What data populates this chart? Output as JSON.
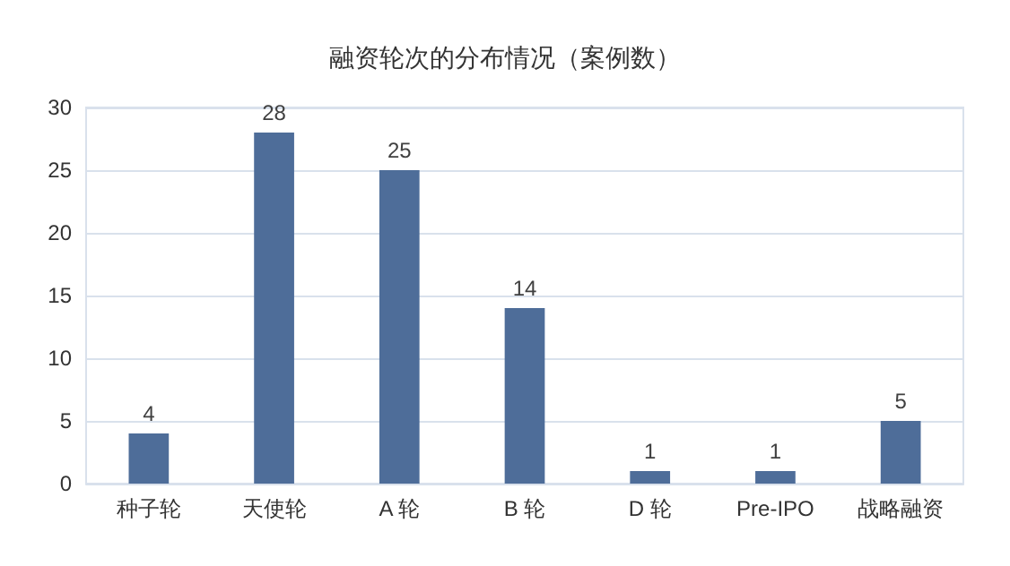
{
  "chart_data": {
    "type": "bar",
    "title": "融资轮次的分布情况（案例数）",
    "categories": [
      "种子轮",
      "天使轮",
      "A 轮",
      "B 轮",
      "D 轮",
      "Pre-IPO",
      "战略融资"
    ],
    "values": [
      4,
      28,
      25,
      14,
      1,
      1,
      5
    ],
    "color": "#4e6d99",
    "ylim": [
      0,
      30
    ],
    "yticks": [
      0,
      5,
      10,
      15,
      20,
      25,
      30
    ],
    "grid": "y",
    "data_labels": true
  }
}
